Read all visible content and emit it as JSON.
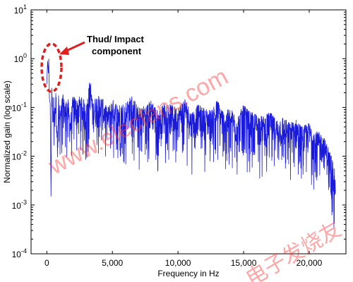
{
  "chart_data": {
    "type": "line",
    "title": "",
    "xlabel": "Frequency in Hz",
    "ylabel": "Normalized gain (log scale)",
    "xlim": [
      -1200,
      22800
    ],
    "ylim": [
      0.0001,
      10
    ],
    "yscale": "log",
    "grid": false,
    "x_ticks": [
      0,
      5000,
      10000,
      15000,
      20000
    ],
    "x_tick_labels": [
      "0",
      "5,000",
      "10,000",
      "15,000",
      "20,000"
    ],
    "y_ticks": [
      0.0001,
      0.001,
      0.01,
      0.1,
      1,
      10
    ],
    "y_tick_labels": [
      {
        "base": "10",
        "exp": "-4"
      },
      {
        "base": "10",
        "exp": "-3"
      },
      {
        "base": "10",
        "exp": "-2"
      },
      {
        "base": "10",
        "exp": "-1"
      },
      {
        "base": "10",
        "exp": "0"
      },
      {
        "base": "10",
        "exp": "1"
      }
    ],
    "series": [
      {
        "color": "#1a1adb",
        "x": [
          0,
          60,
          120,
          150,
          200,
          260,
          320,
          380,
          450,
          520,
          600,
          700,
          800,
          900,
          1000,
          1200,
          1400,
          1600,
          1800,
          2000,
          2300,
          2600,
          3000,
          3300,
          3500,
          3800,
          4200,
          4600,
          5000,
          5500,
          6000,
          6500,
          7000,
          7500,
          8000,
          8500,
          9000,
          9500,
          10000,
          10500,
          11000,
          11500,
          12000,
          12500,
          13000,
          13500,
          14000,
          14500,
          15000,
          15500,
          16000,
          16500,
          17000,
          17500,
          18000,
          18500,
          19000,
          19500,
          20000,
          20500,
          21000,
          21300,
          21600,
          21900,
          22000
        ],
        "y": [
          0.3,
          0.9,
          0.5,
          1.0,
          0.15,
          0.12,
          0.0015,
          0.25,
          0.05,
          0.12,
          0.06,
          0.15,
          0.02,
          0.13,
          0.05,
          0.12,
          0.08,
          0.1,
          0.04,
          0.11,
          0.09,
          0.12,
          0.07,
          0.25,
          0.08,
          0.11,
          0.1,
          0.06,
          0.09,
          0.07,
          0.08,
          0.11,
          0.06,
          0.07,
          0.09,
          0.05,
          0.08,
          0.07,
          0.06,
          0.1,
          0.05,
          0.07,
          0.06,
          0.055,
          0.09,
          0.05,
          0.06,
          0.04,
          0.07,
          0.05,
          0.045,
          0.04,
          0.05,
          0.035,
          0.04,
          0.03,
          0.035,
          0.025,
          0.03,
          0.02,
          0.018,
          0.012,
          0.008,
          0.004,
          0.002
        ]
      }
    ],
    "annotations": [
      {
        "text_lines": [
          "Thud/ Impact",
          "component"
        ],
        "target_x": 150,
        "target_y": 1.0
      }
    ]
  },
  "watermarks": {
    "site": "www.elecfans.com",
    "brand": "电子发烧友"
  },
  "colors": {
    "line": "#1a1adb",
    "annotation": "#e02020"
  }
}
